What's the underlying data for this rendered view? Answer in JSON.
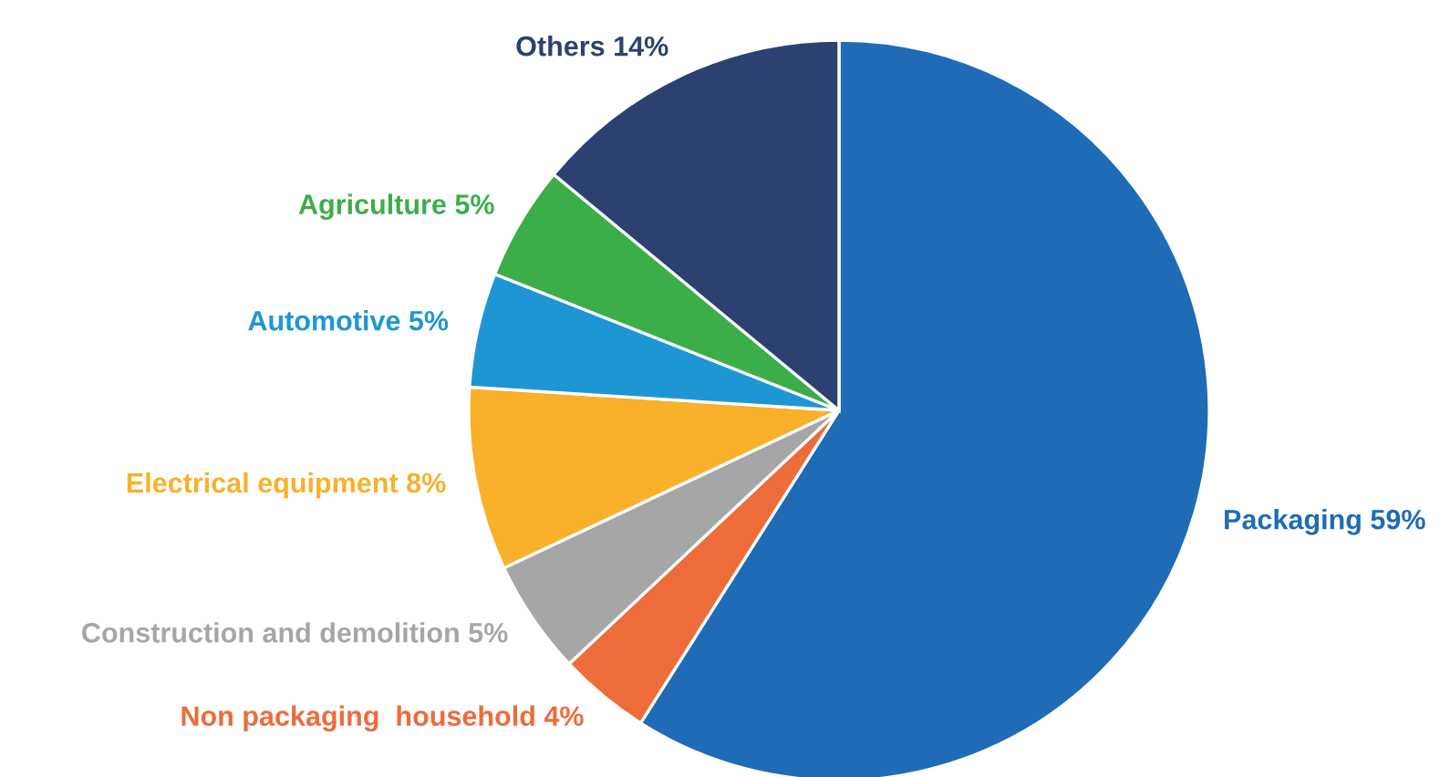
{
  "chart_data": {
    "type": "pie",
    "categories": [
      "Packaging",
      "Non packaging  household",
      "Construction and demolition",
      "Electrical equipment",
      "Automotive",
      "Agriculture",
      "Others"
    ],
    "values": [
      59,
      4,
      5,
      8,
      5,
      5,
      14
    ],
    "value_labels": [
      "59%",
      "4%",
      "5%",
      "8%",
      "5%",
      "5%",
      "14%"
    ],
    "colors": [
      "#1f6bb5",
      "#ee6b3a",
      "#a6a6a6",
      "#f9b02a",
      "#1e96d4",
      "#3bae4a",
      "#2c4170"
    ]
  }
}
